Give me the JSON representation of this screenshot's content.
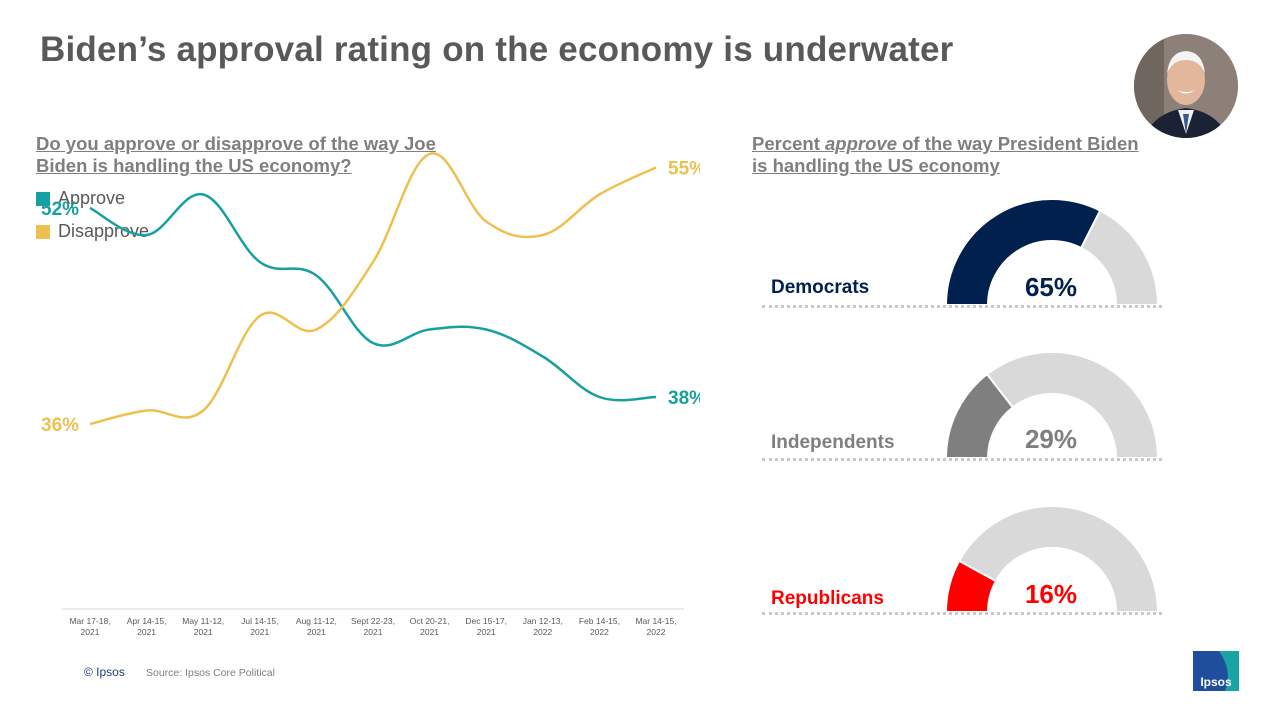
{
  "title": "Biden’s approval rating on the economy is underwater",
  "left_question": "Do you approve or disapprove of the way Joe Biden is handling the US economy?",
  "right_question": {
    "pre": "Percent ",
    "em": "approve",
    "post": " of the way President Biden is handling the US economy"
  },
  "colors": {
    "approve": "#17a0a0",
    "disapprove": "#edc04f",
    "democrats": "#00204e",
    "independents": "#7f7f7f",
    "republicans": "#ff0000",
    "remainder": "#d9d9d9"
  },
  "chart_data": [
    {
      "type": "line",
      "title": "Do you approve or disapprove of the way Joe Biden is handling the US economy?",
      "categories": [
        [
          "Mar 17-18,",
          "2021"
        ],
        [
          "Apr 14-15,",
          "2021"
        ],
        [
          "May 11-12,",
          "2021"
        ],
        [
          "Jul 14-15,",
          "2021"
        ],
        [
          "Aug 11-12,",
          "2021"
        ],
        [
          "Sept 22-23,",
          "2021"
        ],
        [
          "Oct 20-21,",
          "2021"
        ],
        [
          "Dec 15-17,",
          "2021"
        ],
        [
          "Jan 12-13,",
          "2022"
        ],
        [
          "Feb 14-15,",
          "2022"
        ],
        [
          "Mar 14-15,",
          "2022"
        ]
      ],
      "series": [
        {
          "name": "Approve",
          "values": [
            52,
            50,
            53,
            48,
            47,
            42,
            43,
            43,
            41,
            38,
            38
          ]
        },
        {
          "name": "Disapprove",
          "values": [
            36,
            37,
            37,
            44,
            43,
            48,
            56,
            51,
            50,
            53,
            55
          ]
        }
      ],
      "end_labels": {
        "Approve": [
          "52%",
          "38%"
        ],
        "Disapprove": [
          "36%",
          "55%"
        ]
      },
      "ylim": [
        20,
        60
      ],
      "legend": "top-left"
    },
    {
      "type": "gauge",
      "title": "Percent approve of the way President Biden is handling the US economy",
      "items": [
        {
          "group": "Democrats",
          "value": 65,
          "label": "65%"
        },
        {
          "group": "Independents",
          "value": 29,
          "label": "29%"
        },
        {
          "group": "Republicans",
          "value": 16,
          "label": "16%"
        }
      ]
    }
  ],
  "footer": {
    "copyright": "© Ipsos",
    "source": "Source: Ipsos Core Political",
    "logo_text": "Ipsos"
  }
}
